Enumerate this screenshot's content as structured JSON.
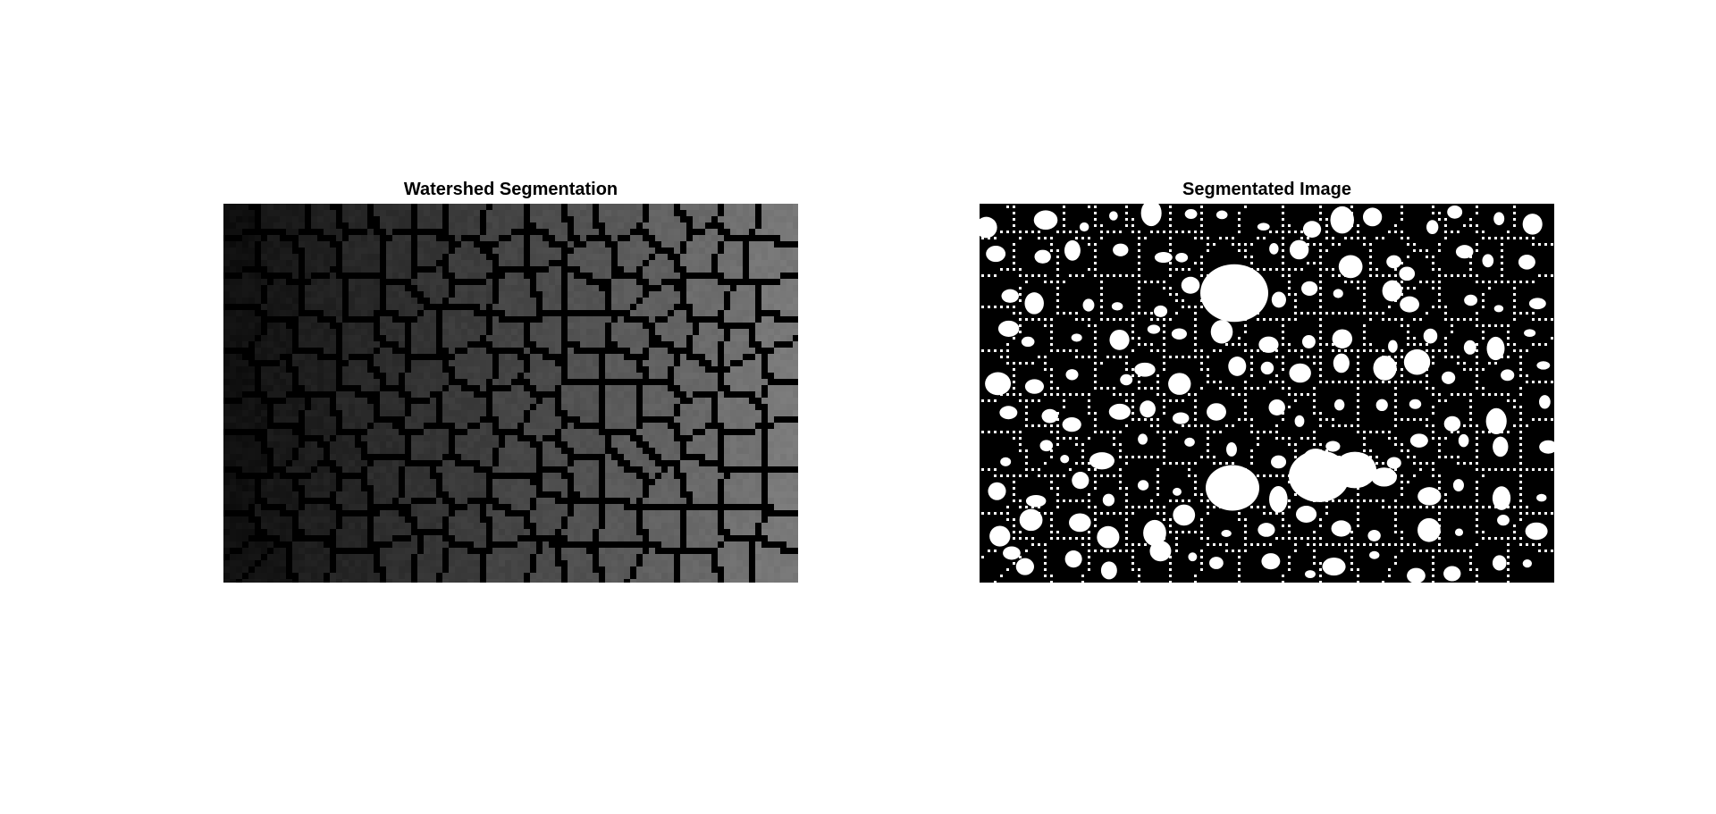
{
  "figure": {
    "panels": [
      {
        "title": "Watershed Segmentation"
      },
      {
        "title": "Segmentated Image"
      }
    ]
  },
  "colors": {
    "background": "#ffffff",
    "title_text": "#000000",
    "watershed_boundary": "#000000",
    "segment_boundary": "#ffffff",
    "segment_background": "#000000",
    "segment_objects": "#ffffff"
  }
}
